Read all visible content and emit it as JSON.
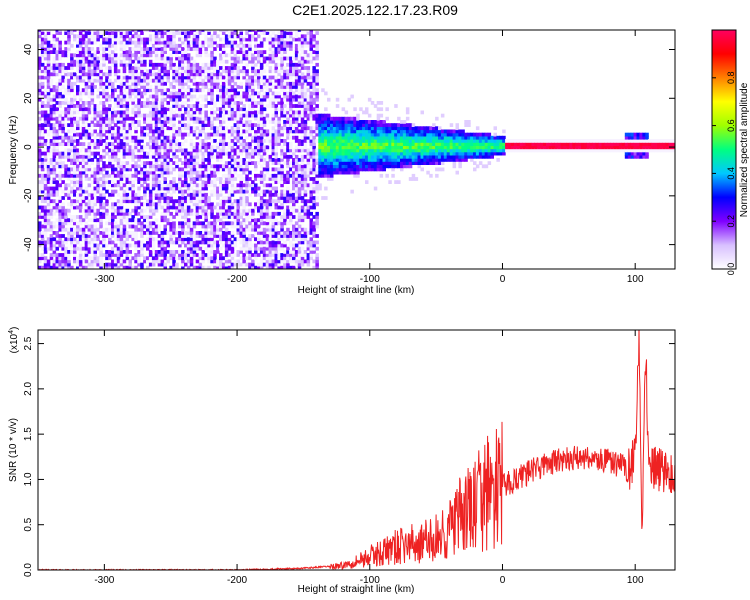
{
  "title": "C2E1.2025.122.17.23.R09",
  "chart_data": [
    {
      "type": "heatmap",
      "ylabel": "Frequency (Hz)",
      "xlabel": "Height of straight line (km)",
      "xlim": [
        -350,
        130
      ],
      "ylim": [
        -50,
        48
      ],
      "x_ticks": [
        -300,
        -200,
        -100,
        0,
        100
      ],
      "y_ticks": [
        -40,
        -20,
        0,
        20,
        40
      ],
      "colorbar": {
        "label": "Normalized spectral amplitude",
        "range": [
          0,
          1
        ],
        "ticks": [
          "0.0",
          "0.2",
          "0.4",
          "0.6",
          "0.8"
        ],
        "colormap": [
          "#ffffff",
          "#d8c0ff",
          "#7f00ff",
          "#0000ff",
          "#00c8ff",
          "#00ff80",
          "#a0ff00",
          "#ffff00",
          "#ff8000",
          "#ff0000",
          "#ff0060"
        ]
      },
      "regions": [
        {
          "x_range": [
            -350,
            -140
          ],
          "description_value": "broadband noise",
          "amplitude": 0.2
        },
        {
          "x_range": [
            -140,
            0
          ],
          "freq_spread": 12,
          "amplitude": 0.35
        },
        {
          "x_range": [
            0,
            130
          ],
          "freq_center": 0,
          "amplitude": 1.0
        }
      ]
    },
    {
      "type": "line",
      "ylabel": "SNR (10 * v/v)",
      "xlabel": "Height of straight line (km)",
      "y_multiplier": "(x10",
      "y_multiplier_exp": "4",
      "xlim": [
        -350,
        130
      ],
      "ylim": [
        0,
        2.65
      ],
      "x_ticks": [
        -300,
        -200,
        -100,
        0,
        100
      ],
      "y_ticks": [
        "0.0",
        "0.5",
        "1.0",
        "1.5",
        "2.0",
        "2.5"
      ],
      "color": "#ee2222",
      "series": [
        {
          "x": [
            -350,
            -200,
            -150,
            -120,
            -110,
            -100,
            -90,
            -80,
            -70,
            -60,
            -50,
            -40,
            -30,
            -20,
            -10,
            0,
            10,
            20,
            30,
            40,
            50,
            60,
            70,
            80,
            90,
            95,
            100,
            103,
            105,
            108,
            110,
            115,
            120,
            125,
            130
          ],
          "y": [
            0.0,
            0.0,
            0.02,
            0.05,
            0.1,
            0.15,
            0.2,
            0.25,
            0.28,
            0.3,
            0.35,
            0.45,
            0.6,
            0.72,
            0.85,
            0.92,
            1.0,
            1.08,
            1.15,
            1.2,
            1.22,
            1.25,
            1.22,
            1.2,
            1.15,
            1.1,
            1.3,
            2.6,
            0.4,
            2.4,
            1.1,
            1.12,
            1.1,
            1.1,
            1.0
          ]
        }
      ]
    }
  ]
}
